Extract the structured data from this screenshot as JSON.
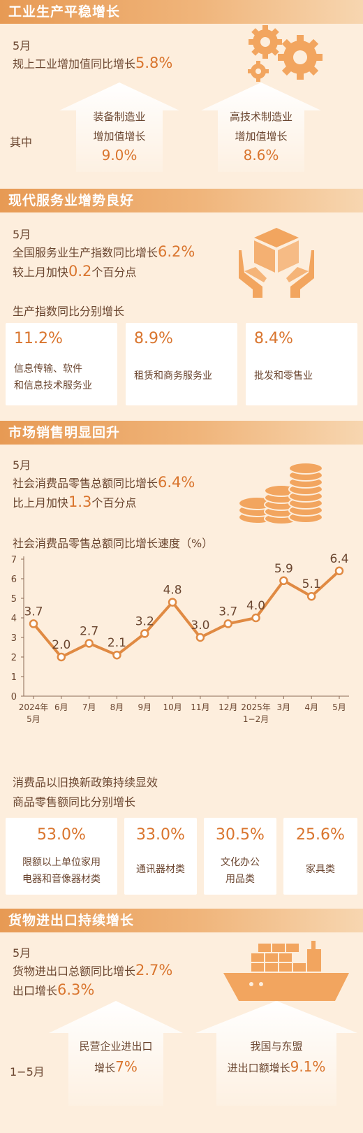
{
  "sections": {
    "industry": {
      "title": "工业生产平稳增长",
      "month": "5月",
      "headline_prefix": "规上工业增加值同比增长",
      "headline_value": "5.8%",
      "among_label": "其中",
      "equipment": {
        "line1": "装备制造业",
        "line2": "增加值增长",
        "value": "9.0%"
      },
      "hightech": {
        "line1": "高技术制造业",
        "line2": "增加值增长",
        "value": "8.6%"
      }
    },
    "services": {
      "title": "现代服务业增势良好",
      "month": "5月",
      "line1_prefix": "全国服务业生产指数同比增长",
      "line1_value": "6.2%",
      "line2_prefix": "较上月加快",
      "line2_value": "0.2",
      "line2_suffix": "个百分点",
      "subtitle": "生产指数同比分别增长",
      "cards": [
        {
          "value": "11.2%",
          "label1": "信息传输、软件",
          "label2": "和信息技术服务业"
        },
        {
          "value": "8.9%",
          "label1": "租赁和商务服务业",
          "label2": ""
        },
        {
          "value": "8.4%",
          "label1": "批发和零售业",
          "label2": ""
        }
      ]
    },
    "retail": {
      "title": "市场销售明显回升",
      "month": "5月",
      "line1_prefix": "社会消费品零售总额同比增长",
      "line1_value": "6.4%",
      "line2_prefix": "比上月加快",
      "line2_value": "1.3",
      "line2_suffix": "个百分点",
      "chart_title": "社会消费品零售总额同比增长速度（%）",
      "policy_line1": "消费品以旧换新政策持续显效",
      "policy_line2": "商品零售额同比分别增长",
      "cards": [
        {
          "value": "53.0%",
          "label1": "限额以上单位家用",
          "label2": "电器和音像器材类"
        },
        {
          "value": "33.0%",
          "label1": "通讯器材类",
          "label2": ""
        },
        {
          "value": "30.5%",
          "label1": "文化办公",
          "label2": "用品类"
        },
        {
          "value": "25.6%",
          "label1": "家具类",
          "label2": ""
        }
      ]
    },
    "trade": {
      "title": "货物进出口持续增长",
      "month": "5月",
      "line1_prefix": "货物进出口总额同比增长",
      "line1_value": "2.7%",
      "line2_prefix": "出口增长",
      "line2_value": "6.3%",
      "period_label": "1−5月",
      "private": {
        "line1": "民营企业进出口",
        "line2_prefix": "增长",
        "value": "7%"
      },
      "asean": {
        "line1": "我国与东盟",
        "line2_prefix": "进出口额增长",
        "value": "9.1%"
      }
    }
  },
  "colors": {
    "accent": "#d9752e",
    "bar": "#e79a54",
    "icon": "#f2a55f",
    "bg": "#fdeedd"
  },
  "icons": [
    "gears-icon",
    "box-hands-icon",
    "coins-icon",
    "cargo-ship-icon"
  ],
  "chart_data": {
    "type": "line",
    "title": "社会消费品零售总额同比增长速度（%）",
    "categories": [
      "2024年5月",
      "6月",
      "7月",
      "8月",
      "9月",
      "10月",
      "11月",
      "12月",
      "2025年1−2月",
      "3月",
      "4月",
      "5月"
    ],
    "x_labels": [
      [
        "2024年",
        "5月"
      ],
      [
        "6月"
      ],
      [
        "7月"
      ],
      [
        "8月"
      ],
      [
        "9月"
      ],
      [
        "10月"
      ],
      [
        "11月"
      ],
      [
        "12月"
      ],
      [
        "2025年",
        "1−2月"
      ],
      [
        "3月"
      ],
      [
        "4月"
      ],
      [
        "5月"
      ]
    ],
    "values": [
      3.7,
      2.0,
      2.7,
      2.1,
      3.2,
      4.8,
      3.0,
      3.7,
      4.0,
      5.9,
      5.1,
      6.4
    ],
    "value_labels": [
      "3.7",
      "2.0",
      "2.7",
      "2.1",
      "3.2",
      "4.8",
      "3.0",
      "3.7",
      "4.0",
      "5.9",
      "5.1",
      "6.4"
    ],
    "y_ticks": [
      "0",
      "1",
      "2",
      "3",
      "4",
      "5",
      "6",
      "7"
    ],
    "ylim": [
      0,
      7
    ],
    "grid": false,
    "color": "#e08a43"
  }
}
